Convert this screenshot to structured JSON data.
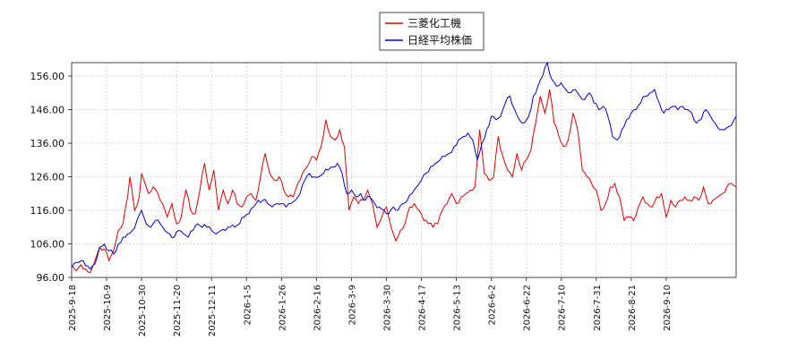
{
  "chart_data": {
    "type": "line",
    "title": "",
    "xlabel": "",
    "ylabel": "",
    "ylim": [
      96.0,
      160.0
    ],
    "y_ticks": [
      "96.00",
      "106.00",
      "116.00",
      "126.00",
      "136.00",
      "146.00",
      "156.00"
    ],
    "x_tick_labels": [
      "2025-9-18",
      "2025-10-9",
      "2025-10-30",
      "2025-11-20",
      "2025-12-11",
      "2026-1-5",
      "2026-1-26",
      "2026-2-16",
      "2026-3-9",
      "2026-3-30",
      "2026-4-17",
      "2026-5-13",
      "2026-6-2",
      "2026-6-22",
      "2026-7-10",
      "2026-7-31",
      "2026-8-21",
      "2026-9-10"
    ],
    "grid": true,
    "legend_placement": "top-center",
    "series": [
      {
        "name": "三菱化工機",
        "color": "#dd0000",
        "anchors": [
          [
            0,
            99.5
          ],
          [
            2,
            98.0
          ],
          [
            4,
            99.8
          ],
          [
            6,
            98.5
          ],
          [
            8,
            97.5
          ],
          [
            10,
            101
          ],
          [
            12,
            105
          ],
          [
            14,
            104.5
          ],
          [
            16,
            101
          ],
          [
            18,
            104
          ],
          [
            20,
            110
          ],
          [
            22,
            112
          ],
          [
            24,
            120
          ],
          [
            25,
            126
          ],
          [
            27,
            116
          ],
          [
            29,
            120
          ],
          [
            30,
            127
          ],
          [
            32,
            123
          ],
          [
            33,
            121
          ],
          [
            35,
            123
          ],
          [
            37,
            121
          ],
          [
            39,
            118
          ],
          [
            41,
            114
          ],
          [
            43,
            118
          ],
          [
            45,
            112
          ],
          [
            47,
            114
          ],
          [
            49,
            122
          ],
          [
            51,
            116
          ],
          [
            53,
            115
          ],
          [
            55,
            122
          ],
          [
            57,
            130
          ],
          [
            59,
            122
          ],
          [
            61,
            128
          ],
          [
            63,
            116
          ],
          [
            65,
            122
          ],
          [
            67,
            118
          ],
          [
            69,
            122
          ],
          [
            71,
            118
          ],
          [
            73,
            117
          ],
          [
            75,
            120
          ],
          [
            77,
            121
          ],
          [
            79,
            119
          ],
          [
            81,
            126
          ],
          [
            83,
            133
          ],
          [
            85,
            127
          ],
          [
            87,
            125
          ],
          [
            89,
            126
          ],
          [
            91,
            122
          ],
          [
            93,
            120
          ],
          [
            95,
            120
          ],
          [
            97,
            124
          ],
          [
            99,
            127
          ],
          [
            101,
            129
          ],
          [
            103,
            132
          ],
          [
            105,
            131
          ],
          [
            107,
            135
          ],
          [
            109,
            143
          ],
          [
            111,
            138
          ],
          [
            113,
            137
          ],
          [
            115,
            140
          ],
          [
            117,
            135
          ],
          [
            119,
            116
          ],
          [
            121,
            120
          ],
          [
            123,
            118
          ],
          [
            125,
            119
          ],
          [
            127,
            122
          ],
          [
            129,
            118
          ],
          [
            131,
            111
          ],
          [
            133,
            114
          ],
          [
            135,
            117
          ],
          [
            137,
            111
          ],
          [
            139,
            107
          ],
          [
            141,
            110
          ],
          [
            143,
            112
          ],
          [
            145,
            117
          ],
          [
            147,
            118
          ],
          [
            149,
            116
          ],
          [
            151,
            113
          ],
          [
            153,
            112
          ],
          [
            155,
            111
          ],
          [
            157,
            112
          ],
          [
            159,
            116
          ],
          [
            161,
            118
          ],
          [
            163,
            121
          ],
          [
            165,
            118
          ],
          [
            167,
            120
          ],
          [
            169,
            121
          ],
          [
            171,
            122
          ],
          [
            173,
            123
          ],
          [
            175,
            140
          ],
          [
            177,
            127
          ],
          [
            179,
            125
          ],
          [
            181,
            126
          ],
          [
            183,
            138
          ],
          [
            185,
            132
          ],
          [
            187,
            128
          ],
          [
            189,
            126
          ],
          [
            191,
            133
          ],
          [
            193,
            128
          ],
          [
            195,
            131
          ],
          [
            197,
            134
          ],
          [
            199,
            142
          ],
          [
            201,
            150
          ],
          [
            203,
            145
          ],
          [
            205,
            152
          ],
          [
            207,
            142
          ],
          [
            209,
            138
          ],
          [
            211,
            135
          ],
          [
            213,
            137
          ],
          [
            215,
            145
          ],
          [
            217,
            140
          ],
          [
            219,
            128
          ],
          [
            221,
            126
          ],
          [
            223,
            124
          ],
          [
            225,
            122
          ],
          [
            227,
            116
          ],
          [
            229,
            118
          ],
          [
            231,
            123
          ],
          [
            233,
            124
          ],
          [
            235,
            120
          ],
          [
            237,
            113
          ],
          [
            239,
            114
          ],
          [
            241,
            113
          ],
          [
            243,
            117
          ],
          [
            245,
            120
          ],
          [
            247,
            118
          ],
          [
            249,
            117
          ],
          [
            251,
            120
          ],
          [
            253,
            121
          ],
          [
            255,
            114
          ],
          [
            257,
            119
          ],
          [
            259,
            117
          ],
          [
            261,
            119
          ],
          [
            263,
            120
          ],
          [
            265,
            119
          ],
          [
            267,
            120
          ],
          [
            269,
            119
          ],
          [
            271,
            123
          ],
          [
            273,
            118
          ],
          [
            275,
            119
          ],
          [
            277,
            120
          ],
          [
            279,
            121
          ],
          [
            281,
            123
          ],
          [
            283,
            124
          ],
          [
            285,
            123
          ]
        ]
      },
      {
        "name": "日経平均株価",
        "color": "#0000cc",
        "anchors": [
          [
            0,
            99
          ],
          [
            2,
            100.5
          ],
          [
            4,
            101
          ],
          [
            6,
            99.5
          ],
          [
            8,
            98.5
          ],
          [
            10,
            100
          ],
          [
            12,
            105
          ],
          [
            14,
            106
          ],
          [
            16,
            104
          ],
          [
            18,
            103
          ],
          [
            20,
            106
          ],
          [
            22,
            108
          ],
          [
            24,
            109
          ],
          [
            26,
            110
          ],
          [
            28,
            113
          ],
          [
            30,
            116
          ],
          [
            32,
            112
          ],
          [
            34,
            111
          ],
          [
            36,
            113
          ],
          [
            38,
            112
          ],
          [
            40,
            110
          ],
          [
            42,
            109
          ],
          [
            44,
            108
          ],
          [
            46,
            110
          ],
          [
            48,
            109
          ],
          [
            50,
            108
          ],
          [
            52,
            110
          ],
          [
            54,
            112
          ],
          [
            56,
            111
          ],
          [
            58,
            111
          ],
          [
            60,
            110
          ],
          [
            62,
            109
          ],
          [
            64,
            110
          ],
          [
            66,
            110
          ],
          [
            68,
            111
          ],
          [
            70,
            111
          ],
          [
            72,
            112
          ],
          [
            74,
            114
          ],
          [
            76,
            115
          ],
          [
            78,
            117
          ],
          [
            80,
            119
          ],
          [
            82,
            119
          ],
          [
            84,
            118
          ],
          [
            86,
            117
          ],
          [
            88,
            118
          ],
          [
            90,
            118
          ],
          [
            92,
            117
          ],
          [
            94,
            118
          ],
          [
            96,
            119
          ],
          [
            98,
            121
          ],
          [
            100,
            125
          ],
          [
            102,
            127
          ],
          [
            104,
            126
          ],
          [
            106,
            126
          ],
          [
            108,
            127
          ],
          [
            110,
            128
          ],
          [
            112,
            129
          ],
          [
            114,
            130
          ],
          [
            116,
            127
          ],
          [
            118,
            121
          ],
          [
            120,
            122
          ],
          [
            122,
            120
          ],
          [
            124,
            121
          ],
          [
            126,
            119
          ],
          [
            128,
            120
          ],
          [
            130,
            118
          ],
          [
            132,
            117
          ],
          [
            134,
            116
          ],
          [
            136,
            115
          ],
          [
            138,
            117
          ],
          [
            140,
            116
          ],
          [
            142,
            118
          ],
          [
            144,
            119
          ],
          [
            146,
            121
          ],
          [
            148,
            123
          ],
          [
            150,
            125
          ],
          [
            152,
            127
          ],
          [
            154,
            129
          ],
          [
            156,
            130
          ],
          [
            158,
            131
          ],
          [
            160,
            132
          ],
          [
            162,
            133
          ],
          [
            164,
            135
          ],
          [
            166,
            137
          ],
          [
            168,
            138
          ],
          [
            170,
            139
          ],
          [
            172,
            137
          ],
          [
            174,
            131
          ],
          [
            176,
            136
          ],
          [
            178,
            140
          ],
          [
            180,
            144
          ],
          [
            182,
            143
          ],
          [
            184,
            144
          ],
          [
            186,
            148
          ],
          [
            188,
            150
          ],
          [
            190,
            146
          ],
          [
            192,
            143
          ],
          [
            194,
            142
          ],
          [
            196,
            144
          ],
          [
            198,
            150
          ],
          [
            200,
            153
          ],
          [
            202,
            156
          ],
          [
            204,
            160
          ],
          [
            206,
            155
          ],
          [
            208,
            153
          ],
          [
            210,
            154
          ],
          [
            212,
            152
          ],
          [
            214,
            151
          ],
          [
            216,
            152
          ],
          [
            218,
            150
          ],
          [
            220,
            149
          ],
          [
            222,
            151
          ],
          [
            224,
            148
          ],
          [
            226,
            146
          ],
          [
            228,
            147
          ],
          [
            230,
            144
          ],
          [
            232,
            138
          ],
          [
            234,
            137
          ],
          [
            236,
            140
          ],
          [
            238,
            143
          ],
          [
            240,
            145
          ],
          [
            242,
            146
          ],
          [
            244,
            148
          ],
          [
            246,
            150
          ],
          [
            248,
            151
          ],
          [
            250,
            152
          ],
          [
            252,
            148
          ],
          [
            254,
            145
          ],
          [
            256,
            146
          ],
          [
            258,
            147
          ],
          [
            260,
            146
          ],
          [
            262,
            147
          ],
          [
            264,
            146
          ],
          [
            266,
            145
          ],
          [
            268,
            142
          ],
          [
            270,
            143
          ],
          [
            272,
            146
          ],
          [
            274,
            144
          ],
          [
            276,
            142
          ],
          [
            278,
            140
          ],
          [
            280,
            140
          ],
          [
            282,
            141
          ],
          [
            285,
            144
          ]
        ]
      }
    ]
  }
}
